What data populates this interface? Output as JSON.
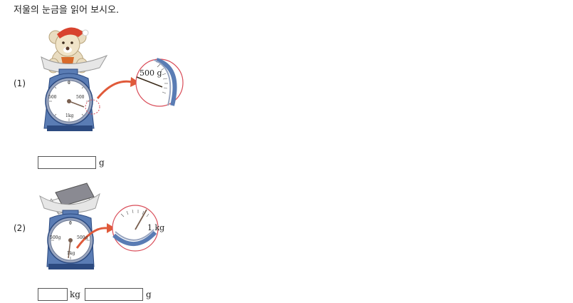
{
  "instruction": "저울의 눈금을 읽어 보시오.",
  "colors": {
    "scale_body": "#5a7cb4",
    "scale_dark": "#2c4a80",
    "dial_ring": "#9aa6c0",
    "arrow": "#e05a3a",
    "magnifier_ring": "#d94c58",
    "needle": "#7a6050",
    "book": "#8a8a92"
  },
  "problems": [
    {
      "number": "(1)",
      "item_icon": "teddy-bear-icon",
      "dial_labels": {
        "top": "0",
        "left": "500",
        "right": "500",
        "bottom": "1kg"
      },
      "zoom_label": "500 g",
      "answer_units": [
        "g"
      ]
    },
    {
      "number": "(2)",
      "item_icon": "book-icon",
      "dial_labels": {
        "top": "0",
        "left": "500g",
        "right": "500g",
        "bottom": "1kg"
      },
      "zoom_label": "1 kg",
      "answer_units": [
        "kg",
        "g"
      ]
    }
  ]
}
